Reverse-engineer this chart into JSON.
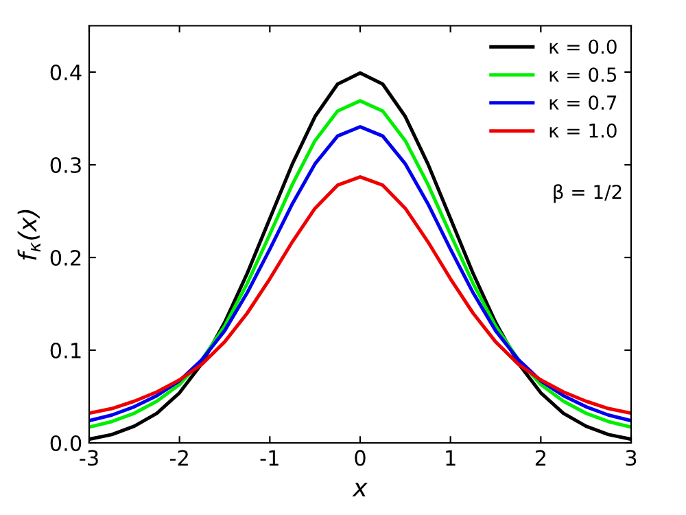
{
  "chart_data": {
    "type": "line",
    "xlabel": "x",
    "ylabel": "f$_{κ}$(x)",
    "x": [
      -3,
      -2.75,
      -2.5,
      -2.25,
      -2,
      -1.75,
      -1.5,
      -1.25,
      -1,
      -0.75,
      -0.5,
      -0.25,
      0,
      0.25,
      0.5,
      0.75,
      1,
      1.25,
      1.5,
      1.75,
      2,
      2.25,
      2.5,
      2.75,
      3
    ],
    "series": [
      {
        "name": "κ = 0.0",
        "color": "#000000",
        "values": [
          0.004,
          0.009,
          0.018,
          0.032,
          0.054,
          0.086,
          0.13,
          0.183,
          0.242,
          0.301,
          0.352,
          0.387,
          0.399,
          0.387,
          0.352,
          0.301,
          0.242,
          0.183,
          0.13,
          0.086,
          0.054,
          0.032,
          0.018,
          0.009,
          0.004
        ]
      },
      {
        "name": "κ = 0.5",
        "color": "#00ee00",
        "values": [
          0.017,
          0.023,
          0.032,
          0.045,
          0.063,
          0.09,
          0.126,
          0.172,
          0.225,
          0.279,
          0.326,
          0.358,
          0.369,
          0.358,
          0.326,
          0.279,
          0.225,
          0.172,
          0.126,
          0.09,
          0.063,
          0.045,
          0.032,
          0.023,
          0.017
        ]
      },
      {
        "name": "κ = 0.7",
        "color": "#0000ee",
        "values": [
          0.024,
          0.03,
          0.039,
          0.051,
          0.067,
          0.09,
          0.121,
          0.162,
          0.209,
          0.258,
          0.301,
          0.331,
          0.341,
          0.331,
          0.301,
          0.258,
          0.209,
          0.162,
          0.121,
          0.09,
          0.067,
          0.051,
          0.039,
          0.03,
          0.024
        ]
      },
      {
        "name": "κ = 1.0",
        "color": "#ee0000",
        "values": [
          0.032,
          0.037,
          0.045,
          0.055,
          0.068,
          0.085,
          0.109,
          0.14,
          0.177,
          0.217,
          0.253,
          0.278,
          0.287,
          0.278,
          0.253,
          0.217,
          0.177,
          0.14,
          0.109,
          0.085,
          0.068,
          0.055,
          0.045,
          0.037,
          0.032
        ]
      }
    ],
    "annotations": [
      "β = 1/2"
    ],
    "xlim": [
      -3,
      3
    ],
    "ylim": [
      0,
      0.45
    ],
    "xticks": [
      -3,
      -2,
      -1,
      0,
      1,
      2,
      3
    ],
    "yticks": [
      {
        "value": 0,
        "label": "0.0"
      },
      0.1,
      0.2,
      0.3,
      0.4
    ],
    "grid": false,
    "legend": "top right",
    "marker": "none",
    "line_style": "solid"
  }
}
